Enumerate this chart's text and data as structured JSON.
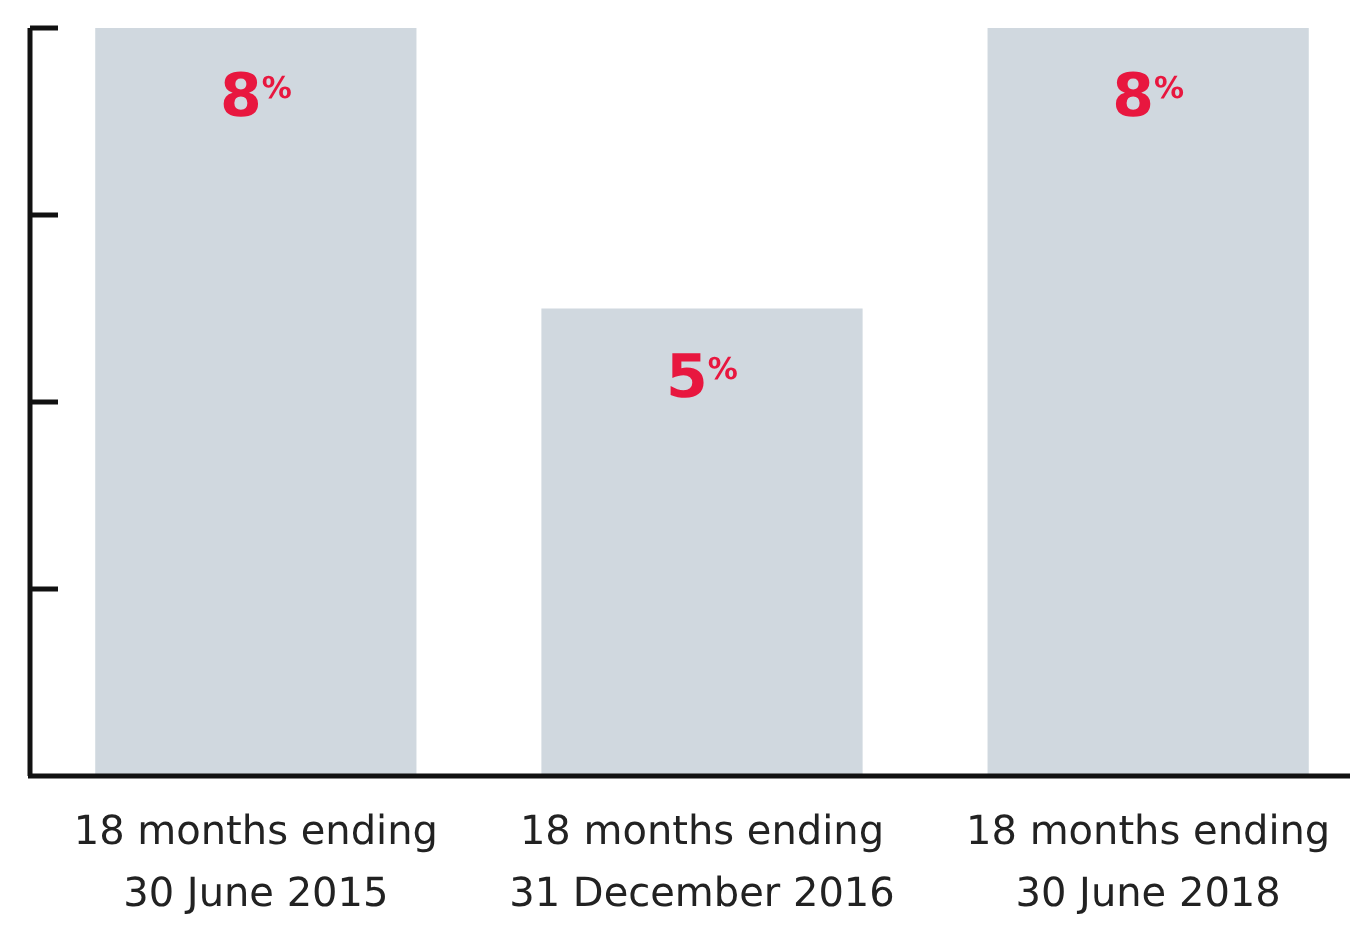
{
  "chart_data": {
    "type": "bar",
    "categories": [
      "18 months ending\n30 June 2015",
      "18 months ending\n31 December 2016",
      "18 months ending\n30 June 2018"
    ],
    "values": [
      8,
      5,
      8
    ],
    "color": "#d0d8df",
    "value_labels": [
      "8$^{%}$",
      "5$^{%}$",
      "8$^{%}$"
    ],
    "ylim": [
      0,
      8
    ],
    "yticks": [
      {
        "value": 2,
        "label": null
      },
      {
        "value": 4,
        "label": null
      },
      {
        "value": 6,
        "label": null
      },
      {
        "value": 8,
        "label": null
      }
    ],
    "tick_labels": "x"
  }
}
